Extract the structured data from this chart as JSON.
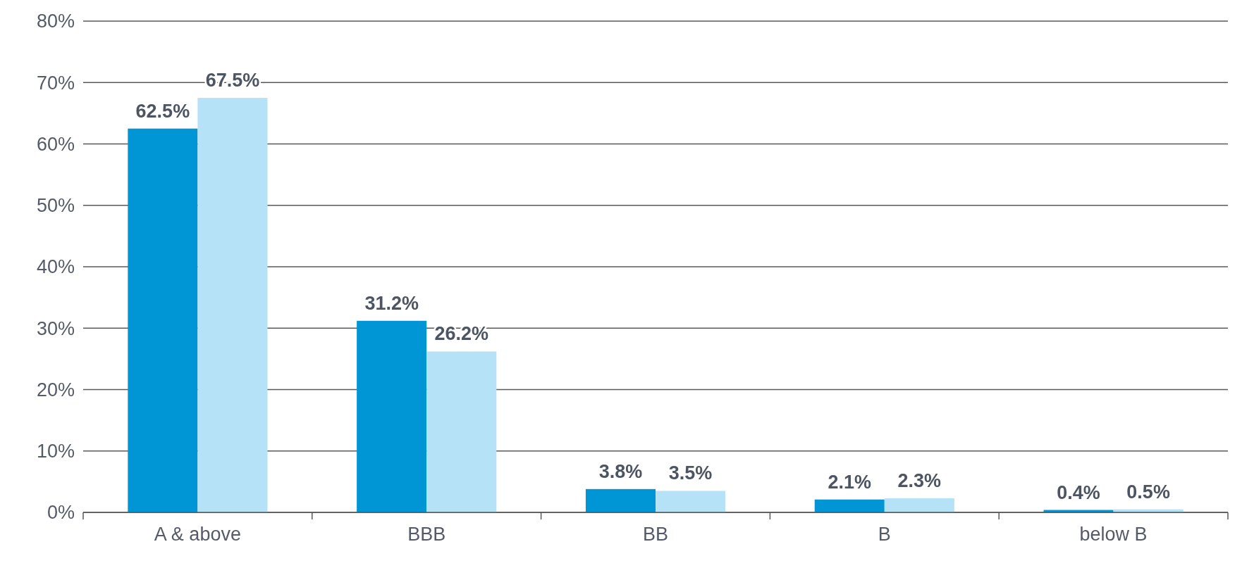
{
  "chart_data": {
    "type": "bar",
    "categories": [
      "A & above",
      "BBB",
      "BB",
      "B",
      "below B"
    ],
    "series": [
      {
        "color": "#0096d6",
        "values": [
          62.5,
          31.2,
          3.8,
          2.1,
          0.4
        ],
        "value_labels": [
          "62.5%",
          "31.2%",
          "3.8%",
          "2.1%",
          "0.4%"
        ]
      },
      {
        "color": "#b5e2f6",
        "values": [
          67.5,
          26.2,
          3.5,
          2.3,
          0.5
        ],
        "value_labels": [
          "67.5%",
          "26.2%",
          "3.5%",
          "2.3%",
          "0.5%"
        ]
      }
    ],
    "ylim": [
      0,
      80
    ],
    "yticks": [
      {
        "value": 0,
        "label": "0%"
      },
      {
        "value": 10,
        "label": "10%"
      },
      {
        "value": 20,
        "label": "20%"
      },
      {
        "value": 30,
        "label": "30%"
      },
      {
        "value": 40,
        "label": "40%"
      },
      {
        "value": 50,
        "label": "50%"
      },
      {
        "value": 60,
        "label": "60%"
      },
      {
        "value": 70,
        "label": "70%"
      },
      {
        "value": 80,
        "label": "80%"
      }
    ],
    "grid": "y"
  }
}
